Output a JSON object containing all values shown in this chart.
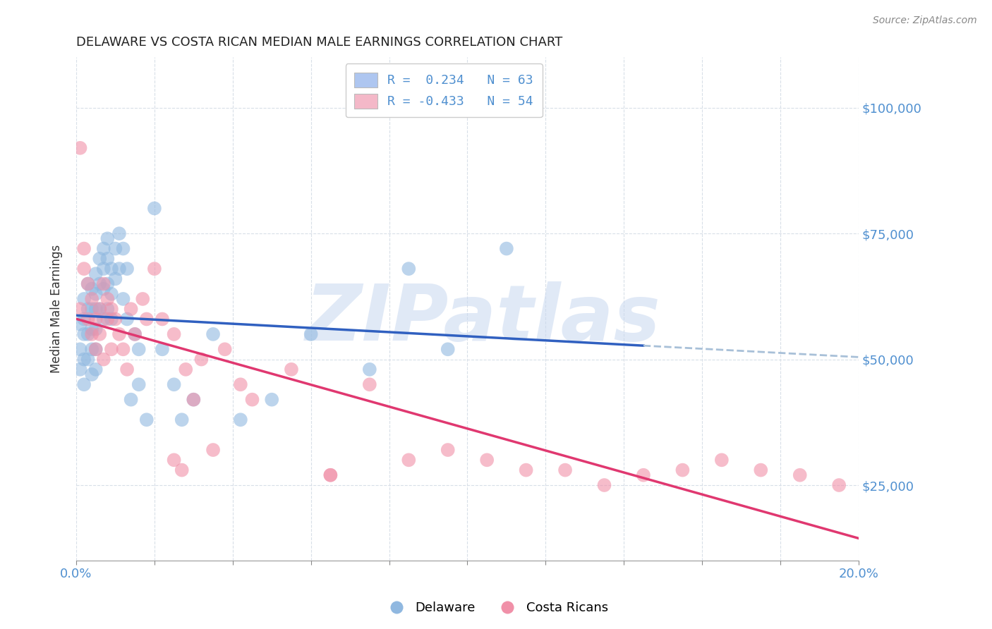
{
  "title": "DELAWARE VS COSTA RICAN MEDIAN MALE EARNINGS CORRELATION CHART",
  "source": "Source: ZipAtlas.com",
  "ylabel": "Median Male Earnings",
  "yticks": [
    25000,
    50000,
    75000,
    100000
  ],
  "ytick_labels": [
    "$25,000",
    "$50,000",
    "$75,000",
    "$100,000"
  ],
  "legend_entries": [
    {
      "label": "R =  0.234   N = 63",
      "color": "#aec6f0"
    },
    {
      "label": "R = -0.433   N = 54",
      "color": "#f4b8c8"
    }
  ],
  "legend_labels": [
    "Delaware",
    "Costa Ricans"
  ],
  "delaware_color": "#90b8e0",
  "costa_rican_color": "#f090a8",
  "trend_delaware_color": "#3060c0",
  "trend_delaware_dash_color": "#a8c0d8",
  "trend_costa_rican_color": "#e03870",
  "background_color": "#ffffff",
  "grid_color": "#d8dfe8",
  "watermark": "ZIPatlas",
  "watermark_color": "#c8d8f0",
  "xlim": [
    0.0,
    0.2
  ],
  "ylim": [
    10000,
    110000
  ],
  "delaware_R": 0.234,
  "delaware_N": 63,
  "costa_rican_R": -0.433,
  "costa_rican_N": 54,
  "delaware_x": [
    0.001,
    0.001,
    0.001,
    0.002,
    0.002,
    0.002,
    0.002,
    0.002,
    0.003,
    0.003,
    0.003,
    0.003,
    0.004,
    0.004,
    0.004,
    0.004,
    0.004,
    0.005,
    0.005,
    0.005,
    0.005,
    0.005,
    0.005,
    0.006,
    0.006,
    0.006,
    0.007,
    0.007,
    0.007,
    0.007,
    0.008,
    0.008,
    0.008,
    0.008,
    0.009,
    0.009,
    0.009,
    0.01,
    0.01,
    0.011,
    0.011,
    0.012,
    0.012,
    0.013,
    0.013,
    0.014,
    0.015,
    0.016,
    0.016,
    0.018,
    0.02,
    0.022,
    0.025,
    0.027,
    0.03,
    0.035,
    0.042,
    0.05,
    0.06,
    0.075,
    0.085,
    0.095,
    0.11
  ],
  "delaware_y": [
    52000,
    57000,
    48000,
    62000,
    58000,
    55000,
    50000,
    45000,
    65000,
    60000,
    55000,
    50000,
    64000,
    60000,
    56000,
    52000,
    47000,
    67000,
    63000,
    60000,
    56000,
    52000,
    48000,
    70000,
    65000,
    60000,
    72000,
    68000,
    64000,
    58000,
    74000,
    70000,
    65000,
    60000,
    68000,
    63000,
    58000,
    72000,
    66000,
    75000,
    68000,
    72000,
    62000,
    68000,
    58000,
    42000,
    55000,
    52000,
    45000,
    38000,
    80000,
    52000,
    45000,
    38000,
    42000,
    55000,
    38000,
    42000,
    55000,
    48000,
    68000,
    52000,
    72000
  ],
  "costa_rican_x": [
    0.001,
    0.001,
    0.002,
    0.002,
    0.003,
    0.003,
    0.004,
    0.004,
    0.005,
    0.005,
    0.006,
    0.006,
    0.007,
    0.007,
    0.008,
    0.008,
    0.009,
    0.009,
    0.01,
    0.011,
    0.012,
    0.013,
    0.014,
    0.015,
    0.017,
    0.018,
    0.02,
    0.022,
    0.025,
    0.028,
    0.032,
    0.038,
    0.045,
    0.055,
    0.065,
    0.075,
    0.085,
    0.095,
    0.105,
    0.115,
    0.125,
    0.135,
    0.145,
    0.155,
    0.165,
    0.175,
    0.185,
    0.195,
    0.065,
    0.042,
    0.035,
    0.03,
    0.027,
    0.025
  ],
  "costa_rican_y": [
    92000,
    60000,
    68000,
    72000,
    58000,
    65000,
    62000,
    55000,
    58000,
    52000,
    60000,
    55000,
    65000,
    50000,
    62000,
    58000,
    60000,
    52000,
    58000,
    55000,
    52000,
    48000,
    60000,
    55000,
    62000,
    58000,
    68000,
    58000,
    55000,
    48000,
    50000,
    52000,
    42000,
    48000,
    27000,
    45000,
    30000,
    32000,
    30000,
    28000,
    28000,
    25000,
    27000,
    28000,
    30000,
    28000,
    27000,
    25000,
    27000,
    45000,
    32000,
    42000,
    28000,
    30000
  ]
}
